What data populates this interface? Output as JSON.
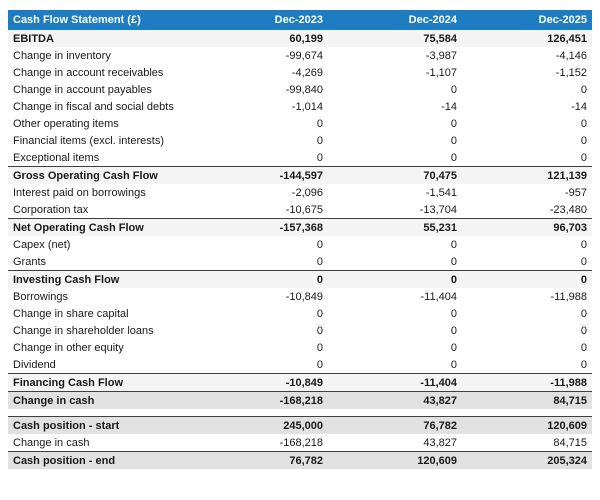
{
  "colors": {
    "header_bg": "#1e7dc2",
    "header_text": "#ffffff",
    "subtotal_row_bg": "#f4f4f4",
    "total_row_bg": "#e1e1e1",
    "border_dark": "#3f3f3f",
    "text": "#1a1a1a",
    "page_bg": "#ffffff"
  },
  "chart_data": {
    "type": "table",
    "title": "Cash Flow Statement (£)",
    "columns": [
      "Dec-2023",
      "Dec-2024",
      "Dec-2025"
    ],
    "rows": [
      {
        "label": "EBITDA",
        "values": [
          60199,
          75584,
          126451
        ],
        "style": "subtotal"
      },
      {
        "label": "Change in inventory",
        "values": [
          -99674,
          -3987,
          -4146
        ],
        "style": "normal"
      },
      {
        "label": "Change in account receivables",
        "values": [
          -4269,
          -1107,
          -1152
        ],
        "style": "normal"
      },
      {
        "label": "Change in account payables",
        "values": [
          -99840,
          0,
          0
        ],
        "style": "normal"
      },
      {
        "label": "Change in fiscal and social debts",
        "values": [
          -1014,
          -14,
          -14
        ],
        "style": "normal"
      },
      {
        "label": "Other operating items",
        "values": [
          0,
          0,
          0
        ],
        "style": "normal"
      },
      {
        "label": "Financial items (excl. interests)",
        "values": [
          0,
          0,
          0
        ],
        "style": "normal"
      },
      {
        "label": "Exceptional items",
        "values": [
          0,
          0,
          0
        ],
        "style": "normal"
      },
      {
        "label": "Gross Operating Cash Flow",
        "values": [
          -144597,
          70475,
          121139
        ],
        "style": "subtotal-line"
      },
      {
        "label": "Interest paid on borrowings",
        "values": [
          -2096,
          -1541,
          -957
        ],
        "style": "normal"
      },
      {
        "label": "Corporation tax",
        "values": [
          -10675,
          -13704,
          -23480
        ],
        "style": "normal"
      },
      {
        "label": "Net Operating Cash Flow",
        "values": [
          -157368,
          55231,
          96703
        ],
        "style": "subtotal-line"
      },
      {
        "label": "Capex (net)",
        "values": [
          0,
          0,
          0
        ],
        "style": "normal"
      },
      {
        "label": "Grants",
        "values": [
          0,
          0,
          0
        ],
        "style": "normal"
      },
      {
        "label": "Investing Cash Flow",
        "values": [
          0,
          0,
          0
        ],
        "style": "subtotal-line"
      },
      {
        "label": "Borrowings",
        "values": [
          -10849,
          -11404,
          -11988
        ],
        "style": "normal"
      },
      {
        "label": "Change in share capital",
        "values": [
          0,
          0,
          0
        ],
        "style": "normal"
      },
      {
        "label": "Change in shareholder loans",
        "values": [
          0,
          0,
          0
        ],
        "style": "normal"
      },
      {
        "label": "Change in other equity",
        "values": [
          0,
          0,
          0
        ],
        "style": "normal"
      },
      {
        "label": "Dividend",
        "values": [
          0,
          0,
          0
        ],
        "style": "normal"
      },
      {
        "label": "Financing Cash Flow",
        "values": [
          -10849,
          -11404,
          -11988
        ],
        "style": "subtotal-line"
      },
      {
        "label": "Change in cash",
        "values": [
          -168218,
          43827,
          84715
        ],
        "style": "total"
      }
    ],
    "cash_position_rows": [
      {
        "label": "Cash position - start",
        "values": [
          245000,
          76782,
          120609
        ],
        "style": "total"
      },
      {
        "label": "Change in cash",
        "values": [
          -168218,
          43827,
          84715
        ],
        "style": "normal"
      },
      {
        "label": "Cash position - end",
        "values": [
          76782,
          120609,
          205324
        ],
        "style": "total"
      }
    ]
  }
}
